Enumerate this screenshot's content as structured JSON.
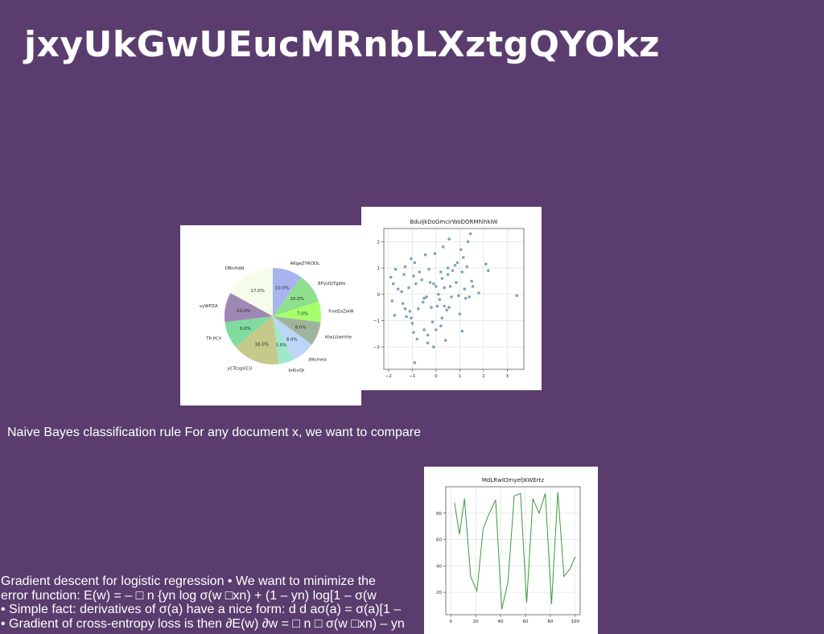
{
  "slide": {
    "title": "jxyUkGwUEucMRnbLXztgQYOkz",
    "caption": "Naive Bayes classification rule For any document x, we want to compare",
    "bullets": [
      "Gradient descent for logistic regression • We want to minimize the",
      "error function: E(w) = – □ n {yn log σ(w □xn) + (1 – yn) log[1 – σ(w",
      "• Simple fact: derivatives of σ(a) have a nice form: d d aσ(a) = σ(a)[1 –",
      "• Gradient of cross-entropy loss is then ∂E(w) ∂w = □ n □ σ(w □xn) – yn"
    ]
  },
  "chart_data": [
    {
      "type": "pie",
      "title": "",
      "labels": [
        "AKgeZYRODL",
        "EPyUQTgbfo",
        "frveEaZwW",
        "ktwLUwmhe",
        "jWumea",
        "lnKivQt",
        "yCTcsgUCU",
        "TP PCY",
        "vyWPZA",
        "DBnXdbl"
      ],
      "values": [
        10.0,
        10.0,
        7.0,
        8.0,
        8.0,
        5.0,
        16.0,
        9.0,
        10.0,
        17.0
      ],
      "value_labels": [
        "10.0%",
        "10.0%",
        "7.0%",
        "8.0%",
        "8.0%",
        "5.0%",
        "16.0%",
        "9.0%",
        "10.0%",
        "17.0%"
      ],
      "colors": [
        "#a8b4ee",
        "#8ee08e",
        "#a6ff6c",
        "#9fb59b",
        "#bdd6f7",
        "#9ee8cc",
        "#c5c98a",
        "#80dc9e",
        "#9e88b4",
        "#f5fce9"
      ]
    },
    {
      "type": "scatter",
      "title": "BduIjkDoGmcirWoDORMhIhkIW",
      "xlabel": "",
      "ylabel": "",
      "xlim": [
        -2.2,
        3.7
      ],
      "ylim": [
        -2.85,
        2.5
      ],
      "xticks": [
        -2,
        -1,
        0,
        1,
        2,
        3
      ],
      "yticks": [
        -2,
        -1,
        0,
        1,
        2
      ],
      "grid": true,
      "color": "#5b8fa8",
      "points": [
        [
          -1.9,
          0.65
        ],
        [
          -1.85,
          -0.25
        ],
        [
          -1.8,
          0.4
        ],
        [
          -1.7,
          0.95
        ],
        [
          -1.6,
          0.2
        ],
        [
          -1.75,
          -0.8
        ],
        [
          -1.45,
          0.1
        ],
        [
          -1.4,
          -0.35
        ],
        [
          -1.35,
          0.75
        ],
        [
          -1.3,
          1.05
        ],
        [
          -1.3,
          -0.55
        ],
        [
          -1.25,
          -0.85
        ],
        [
          -1.15,
          0.25
        ],
        [
          -1.1,
          -0.65
        ],
        [
          -1.05,
          1.35
        ],
        [
          -1.05,
          -0.9
        ],
        [
          -1.0,
          -1.1
        ],
        [
          -0.95,
          0.7
        ],
        [
          -0.95,
          -1.45
        ],
        [
          -0.9,
          1.2
        ],
        [
          -0.85,
          0.4
        ],
        [
          -0.8,
          -1.7
        ],
        [
          -0.9,
          -2.6
        ],
        [
          -0.75,
          -0.55
        ],
        [
          -0.7,
          0.85
        ],
        [
          -0.6,
          0.55
        ],
        [
          -0.55,
          -0.3
        ],
        [
          -0.5,
          -1.35
        ],
        [
          -0.5,
          -0.15
        ],
        [
          -0.45,
          1.5
        ],
        [
          -0.4,
          -0.1
        ],
        [
          -0.35,
          -1.85
        ],
        [
          -0.3,
          0.95
        ],
        [
          -0.25,
          0.45
        ],
        [
          -0.2,
          -0.5
        ],
        [
          -0.15,
          -1.05
        ],
        [
          -0.1,
          -2.0
        ],
        [
          -0.1,
          0.4
        ],
        [
          -0.05,
          1.55
        ],
        [
          0.0,
          0.3
        ],
        [
          0.05,
          -0.45
        ],
        [
          0.0,
          -1.35
        ],
        [
          0.1,
          0.0
        ],
        [
          0.15,
          -0.2
        ],
        [
          0.2,
          0.85
        ],
        [
          0.2,
          -1.2
        ],
        [
          0.25,
          0.6
        ],
        [
          0.25,
          -0.9
        ],
        [
          0.3,
          1.8
        ],
        [
          0.35,
          0.25
        ],
        [
          0.35,
          -0.45
        ],
        [
          0.4,
          -1.75
        ],
        [
          0.45,
          -0.6
        ],
        [
          0.5,
          0.75
        ],
        [
          0.55,
          2.1
        ],
        [
          0.5,
          1.0
        ],
        [
          0.55,
          -0.5
        ],
        [
          0.6,
          0.3
        ],
        [
          0.65,
          -0.1
        ],
        [
          0.7,
          0.9
        ],
        [
          0.8,
          1.1
        ],
        [
          0.85,
          0.45
        ],
        [
          0.9,
          1.2
        ],
        [
          0.95,
          -0.05
        ],
        [
          1.0,
          -0.75
        ],
        [
          1.05,
          1.7
        ],
        [
          1.1,
          0.85
        ],
        [
          1.15,
          1.4
        ],
        [
          1.1,
          -1.4
        ],
        [
          1.2,
          0.2
        ],
        [
          1.25,
          -0.15
        ],
        [
          1.3,
          1.05
        ],
        [
          1.35,
          2.0
        ],
        [
          1.4,
          -0.1
        ],
        [
          1.45,
          2.3
        ],
        [
          1.5,
          0.5
        ],
        [
          1.55,
          0.3
        ],
        [
          1.8,
          0.05
        ],
        [
          2.1,
          1.15
        ],
        [
          2.2,
          0.9
        ],
        [
          3.4,
          -0.05
        ],
        [
          -0.35,
          -1.55
        ]
      ]
    },
    {
      "type": "line",
      "title": "MdLRwIOmyefjKWErtz",
      "xlabel": "",
      "ylabel": "",
      "xlim": [
        -4,
        104
      ],
      "ylim": [
        3,
        100
      ],
      "xticks": [
        0,
        20,
        40,
        60,
        80,
        100
      ],
      "yticks": [
        20,
        40,
        60,
        80
      ],
      "grid": true,
      "color": "#3a9a3a",
      "x": [
        3,
        7,
        11,
        16,
        21,
        26,
        31,
        36,
        41,
        46,
        51,
        56,
        61,
        66,
        71,
        76,
        81,
        86,
        91,
        96,
        100
      ],
      "y": [
        88,
        64,
        91,
        32,
        21,
        68,
        80,
        90,
        7,
        28,
        93,
        95,
        12,
        91,
        80,
        95,
        11,
        96,
        32,
        38,
        47
      ]
    }
  ]
}
